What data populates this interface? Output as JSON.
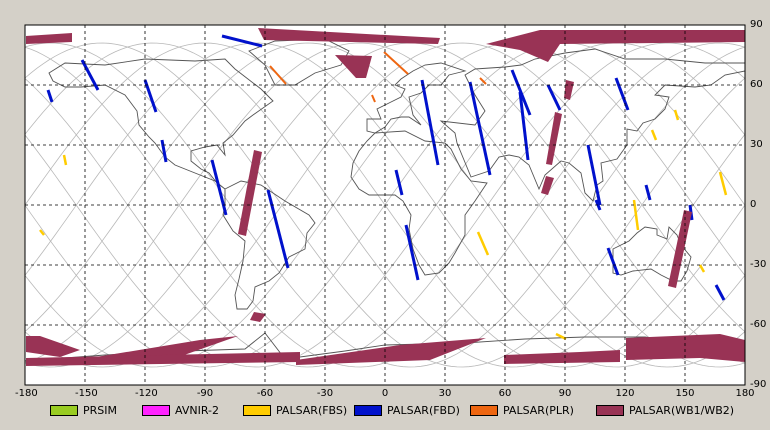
{
  "axes": {
    "x_ticks": [
      "-180",
      "-150",
      "-120",
      "-90",
      "-60",
      "-30",
      "0",
      "30",
      "60",
      "90",
      "120",
      "150",
      "180"
    ],
    "y_ticks": [
      "90",
      "60",
      "30",
      "0",
      "-30",
      "-60",
      "-90"
    ]
  },
  "legend": [
    {
      "label": "PRSIM",
      "color": "#99cc22"
    },
    {
      "label": "AVNIR-2",
      "color": "#ff22ff"
    },
    {
      "label": "PALSAR(FBS)",
      "color": "#ffcc00"
    },
    {
      "label": "PALSAR(FBD)",
      "color": "#0011cc"
    },
    {
      "label": "PALSAR(PLR)",
      "color": "#ee6611"
    },
    {
      "label": "PALSAR(WB1/WB2)",
      "color": "#993355"
    }
  ],
  "colors": {
    "map_background": "#ffffff",
    "frame_background": "#d4d0c8",
    "grid": "#000000",
    "orbit_tracks": "#b8b8b8",
    "coastline": "#555555"
  }
}
